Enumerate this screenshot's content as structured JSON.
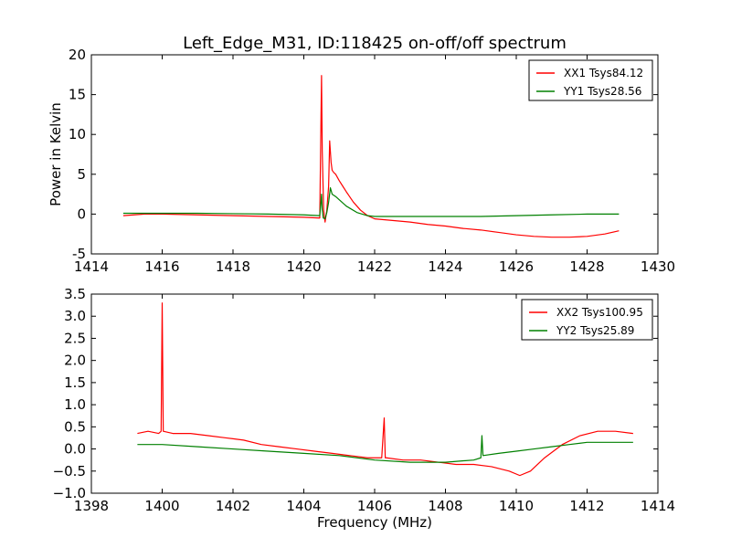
{
  "chart_data": {
    "title": "Left_Edge_M31, ID:118425 on-off/off spectrum",
    "xlabel": "Frequency (MHz)",
    "panels": [
      {
        "type": "line",
        "ylabel": "Power in Kelvin",
        "xlabel": "",
        "xlim": [
          1414,
          1430
        ],
        "ylim": [
          -5,
          20
        ],
        "xticks": [
          1414,
          1416,
          1418,
          1420,
          1422,
          1424,
          1426,
          1428,
          1430
        ],
        "yticks": [
          -5,
          0,
          5,
          10,
          15,
          20
        ],
        "legend_position": "top-right",
        "series": [
          {
            "name": "XX1 Tsys84.12",
            "color": "#ff0000",
            "x": [
              1414.9,
              1415.5,
              1416.0,
              1417.0,
              1418.0,
              1419.0,
              1420.0,
              1420.45,
              1420.5,
              1420.52,
              1420.56,
              1420.6,
              1420.65,
              1420.7,
              1420.73,
              1420.77,
              1420.8,
              1420.85,
              1420.9,
              1421.0,
              1421.1,
              1421.2,
              1421.4,
              1421.6,
              1421.8,
              1422.0,
              1422.5,
              1423.0,
              1423.5,
              1424.0,
              1424.5,
              1425.0,
              1425.5,
              1426.0,
              1426.5,
              1427.0,
              1427.5,
              1428.0,
              1428.5,
              1428.9
            ],
            "y": [
              -0.2,
              0.0,
              0.0,
              -0.1,
              -0.2,
              -0.3,
              -0.4,
              -0.5,
              17.4,
              8.0,
              0.5,
              -1.0,
              0.5,
              3.5,
              9.2,
              6.5,
              5.5,
              5.2,
              5.0,
              4.2,
              3.5,
              2.8,
              1.5,
              0.5,
              -0.2,
              -0.6,
              -0.8,
              -1.0,
              -1.3,
              -1.5,
              -1.8,
              -2.0,
              -2.3,
              -2.6,
              -2.8,
              -2.9,
              -2.9,
              -2.8,
              -2.5,
              -2.1
            ]
          },
          {
            "name": "YY1 Tsys28.56",
            "color": "#008000",
            "x": [
              1414.9,
              1416.0,
              1417.0,
              1418.0,
              1419.0,
              1420.0,
              1420.45,
              1420.5,
              1420.52,
              1420.55,
              1420.6,
              1420.65,
              1420.7,
              1420.75,
              1420.8,
              1420.9,
              1421.0,
              1421.2,
              1421.5,
              1421.8,
              1422.0,
              1423.0,
              1424.0,
              1425.0,
              1426.0,
              1427.0,
              1428.0,
              1428.9
            ],
            "y": [
              0.1,
              0.1,
              0.1,
              0.05,
              0.0,
              -0.1,
              -0.2,
              2.5,
              0.5,
              -0.5,
              -0.6,
              0.2,
              1.5,
              3.3,
              2.5,
              2.2,
              1.8,
              1.0,
              0.2,
              -0.2,
              -0.3,
              -0.3,
              -0.3,
              -0.3,
              -0.2,
              -0.1,
              0.0,
              0.0
            ]
          }
        ]
      },
      {
        "type": "line",
        "ylabel": "",
        "xlabel": "Frequency (MHz)",
        "xlim": [
          1398,
          1414
        ],
        "ylim": [
          -1.0,
          3.5
        ],
        "xticks": [
          1398,
          1400,
          1402,
          1404,
          1406,
          1408,
          1410,
          1412,
          1414
        ],
        "yticks": [
          -1.0,
          -0.5,
          0.0,
          0.5,
          1.0,
          1.5,
          2.0,
          2.5,
          3.0,
          3.5
        ],
        "legend_position": "top-right",
        "series": [
          {
            "name": "XX2 Tsys100.95",
            "color": "#ff0000",
            "x": [
              1399.3,
              1399.6,
              1399.9,
              1399.97,
              1400.0,
              1400.03,
              1400.3,
              1400.8,
              1401.3,
              1401.8,
              1402.3,
              1402.8,
              1403.3,
              1403.8,
              1404.3,
              1404.8,
              1405.3,
              1405.8,
              1406.2,
              1406.27,
              1406.3,
              1406.33,
              1406.8,
              1407.3,
              1407.8,
              1408.3,
              1408.8,
              1409.3,
              1409.8,
              1410.1,
              1410.4,
              1410.8,
              1411.3,
              1411.8,
              1412.3,
              1412.8,
              1413.3
            ],
            "y": [
              0.35,
              0.4,
              0.35,
              0.4,
              3.3,
              0.4,
              0.35,
              0.35,
              0.3,
              0.25,
              0.2,
              0.1,
              0.05,
              0.0,
              -0.05,
              -0.1,
              -0.15,
              -0.2,
              -0.2,
              0.7,
              -0.2,
              -0.2,
              -0.25,
              -0.25,
              -0.3,
              -0.35,
              -0.35,
              -0.4,
              -0.5,
              -0.6,
              -0.5,
              -0.2,
              0.1,
              0.3,
              0.4,
              0.4,
              0.35
            ]
          },
          {
            "name": "YY2 Tsys25.89",
            "color": "#008000",
            "x": [
              1399.3,
              1400.0,
              1401.0,
              1402.0,
              1403.0,
              1404.0,
              1405.0,
              1406.0,
              1407.0,
              1408.0,
              1408.8,
              1409.0,
              1409.03,
              1409.06,
              1409.5,
              1410.0,
              1410.5,
              1411.0,
              1411.5,
              1412.0,
              1412.5,
              1413.3
            ],
            "y": [
              0.1,
              0.1,
              0.05,
              0.0,
              -0.05,
              -0.1,
              -0.15,
              -0.25,
              -0.3,
              -0.3,
              -0.25,
              -0.2,
              0.3,
              -0.15,
              -0.1,
              -0.05,
              0.0,
              0.05,
              0.1,
              0.15,
              0.15,
              0.15
            ]
          }
        ]
      }
    ]
  }
}
